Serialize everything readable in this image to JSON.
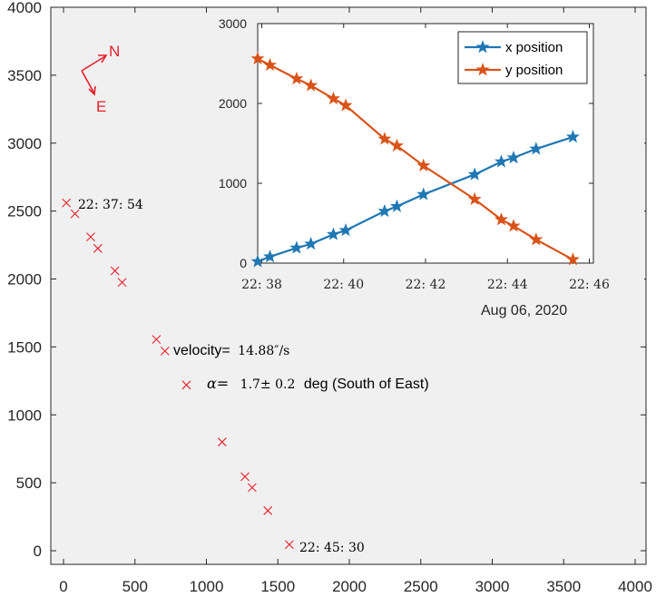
{
  "chart_data": [
    {
      "type": "scatter",
      "xlim": [
        0,
        4000
      ],
      "ylim": [
        0,
        4000
      ],
      "xticks": [
        "0",
        "500",
        "1000",
        "1500",
        "2000",
        "2500",
        "3000",
        "3500",
        "4000"
      ],
      "yticks": [
        "0",
        "500",
        "1000",
        "1500",
        "2000",
        "2500",
        "3000",
        "3500",
        "4000"
      ],
      "marker": "x",
      "color": "#e8202a",
      "points": [
        {
          "x": 20,
          "y": 2560
        },
        {
          "x": 80,
          "y": 2480
        },
        {
          "x": 190,
          "y": 2310
        },
        {
          "x": 240,
          "y": 2225
        },
        {
          "x": 360,
          "y": 2060
        },
        {
          "x": 410,
          "y": 1975
        },
        {
          "x": 650,
          "y": 1555
        },
        {
          "x": 710,
          "y": 1470
        },
        {
          "x": 860,
          "y": 1220
        },
        {
          "x": 1110,
          "y": 800
        },
        {
          "x": 1270,
          "y": 545
        },
        {
          "x": 1320,
          "y": 465
        },
        {
          "x": 1430,
          "y": 295
        },
        {
          "x": 1580,
          "y": 45
        }
      ],
      "start_label": "22: 37: 54",
      "end_label": "22: 45: 30",
      "velocity_label": "velocity=",
      "velocity_value": "14.88″/s",
      "alpha_symbol": "α=",
      "alpha_value": "1.7± 0.2",
      "alpha_unit": "deg (South of East)",
      "compass": {
        "north": "N",
        "east": "E"
      }
    },
    {
      "type": "line",
      "ylim": [
        0,
        3000
      ],
      "xlim": [
        37.9,
        46.1
      ],
      "yticks": [
        "0",
        "1000",
        "2000",
        "3000"
      ],
      "xtick_values": [
        38,
        40,
        42,
        44,
        46
      ],
      "xticks": [
        "22: 38",
        "22: 40",
        "22: 42",
        "22: 44",
        "22: 46"
      ],
      "date_label": "Aug 06, 2020",
      "x": [
        37.9,
        38.2,
        38.85,
        39.2,
        39.75,
        40.05,
        41.0,
        41.3,
        41.95,
        43.2,
        43.85,
        44.15,
        44.7,
        45.6
      ],
      "series": [
        {
          "name": "x position",
          "color": "#1f77b4",
          "values": [
            20,
            80,
            190,
            240,
            360,
            410,
            650,
            710,
            860,
            1110,
            1270,
            1320,
            1430,
            1580
          ]
        },
        {
          "name": "y position",
          "color": "#d95319",
          "values": [
            2560,
            2480,
            2310,
            2225,
            2060,
            1975,
            1555,
            1470,
            1220,
            800,
            545,
            465,
            295,
            45
          ]
        }
      ]
    }
  ]
}
